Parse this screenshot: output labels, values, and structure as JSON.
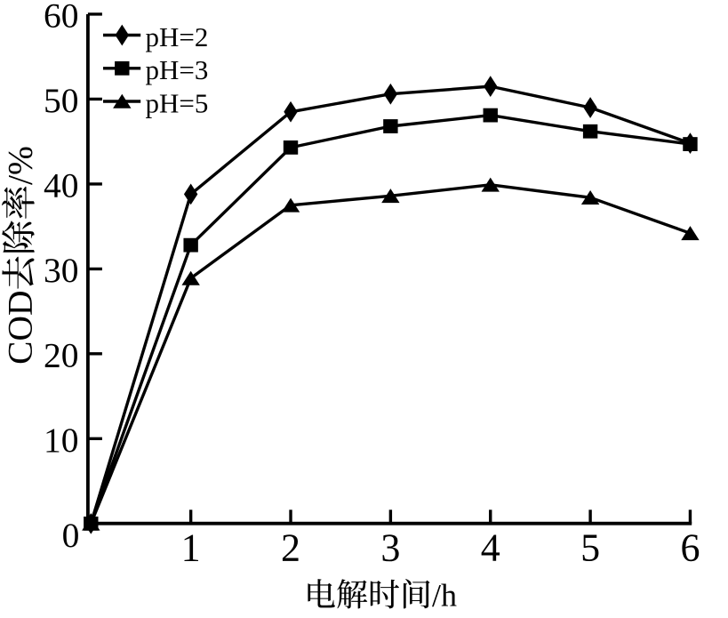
{
  "figure": {
    "background": "#ffffff",
    "ink_color": "#000000"
  },
  "chart_data": {
    "type": "line",
    "title": "",
    "xlabel": "电解时间/h",
    "ylabel": "COD去除率/%",
    "x": [
      0,
      1,
      2,
      3,
      4,
      5,
      6
    ],
    "series": [
      {
        "name": "pH=2",
        "marker": "diamond",
        "values": [
          0,
          38.8,
          48.5,
          50.6,
          51.5,
          49.0,
          44.8
        ]
      },
      {
        "name": "pH=3",
        "marker": "square",
        "values": [
          0,
          32.8,
          44.3,
          46.8,
          48.1,
          46.2,
          44.7
        ]
      },
      {
        "name": "pH=5",
        "marker": "triangle",
        "values": [
          0,
          28.9,
          37.5,
          38.6,
          39.9,
          38.4,
          34.2
        ]
      }
    ],
    "x_tick_labels": [
      "1",
      "2",
      "3",
      "4",
      "5",
      "6"
    ],
    "x_tick_values": [
      1,
      2,
      3,
      4,
      5,
      6
    ],
    "y_tick_labels": [
      "10",
      "20",
      "30",
      "40",
      "50",
      "60"
    ],
    "y_tick_values": [
      10,
      20,
      30,
      40,
      50,
      60
    ],
    "origin_label": "0",
    "xlim": [
      0,
      6
    ],
    "ylim": [
      0,
      60
    ],
    "grid": false,
    "legend_position": "upper-left",
    "line_color": "#000000"
  }
}
